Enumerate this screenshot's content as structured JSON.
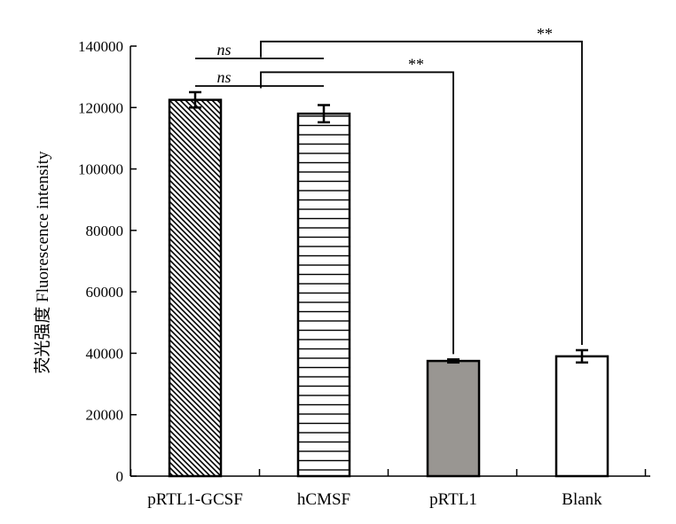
{
  "chart_data": {
    "type": "bar",
    "categories": [
      "pRTL1-GCSF",
      "hCMSF",
      "pRTL1",
      "Blank"
    ],
    "values": [
      122500,
      118000,
      37500,
      39000
    ],
    "errors": [
      2500,
      2800,
      500,
      2000
    ],
    "ylabel": "荧光强度 Fluorescence intensity",
    "xlabel": "",
    "title": "",
    "ylim": [
      0,
      140000
    ],
    "yticks": [
      0,
      20000,
      40000,
      60000,
      80000,
      100000,
      120000,
      140000
    ],
    "ytick_labels": [
      "0",
      "20000",
      "40000",
      "60000",
      "80000",
      "100000",
      "120000",
      "140000"
    ],
    "bar_fills": [
      "backslash-hatch",
      "horizontal-lines",
      "#999692",
      "#ffffff"
    ],
    "grid": false,
    "legend": "none",
    "significance": [
      {
        "label": "ns",
        "from": 0,
        "to": 1,
        "level": 127000
      },
      {
        "label": "ns",
        "from": 0,
        "to": 1,
        "level": 136000
      },
      {
        "label": "**",
        "from": 0,
        "to": 2,
        "level": 131500
      },
      {
        "label": "**",
        "from": 0,
        "to": 3,
        "level": 141500
      }
    ]
  }
}
